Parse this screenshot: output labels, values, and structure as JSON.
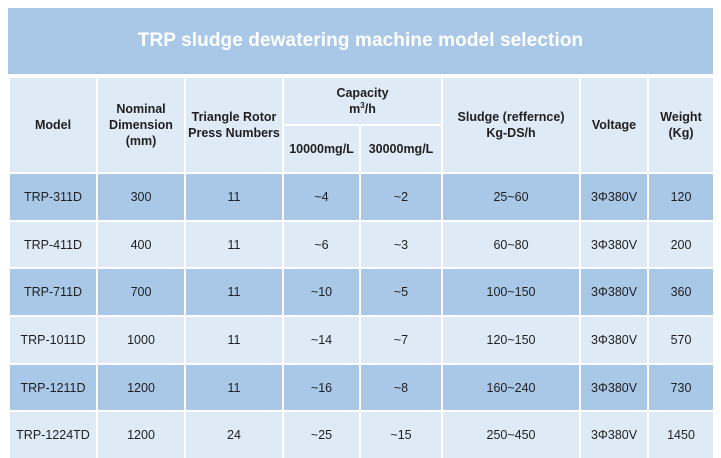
{
  "title": "TRP sludge dewatering machine model selection",
  "headers": {
    "model": "Model",
    "nominal_dimension_1": "Nominal",
    "nominal_dimension_2": "Dimension",
    "nominal_dimension_3": "(mm)",
    "rotor_1": "Triangle Rotor",
    "rotor_2": "Press Numbers",
    "capacity_1": "Capacity",
    "capacity_unit_base": "m",
    "capacity_unit_sup": "3",
    "capacity_unit_rest": "/h",
    "capacity_sub_1": "10000mg/L",
    "capacity_sub_2": "30000mg/L",
    "sludge_1": "Sludge (reffernce)",
    "sludge_2": "Kg-DS/h",
    "voltage": "Voltage",
    "weight_1": "Weight",
    "weight_2": "(Kg)"
  },
  "rows": [
    {
      "model": "TRP-311D",
      "dimension": "300",
      "rotors": "11",
      "cap_10000": "~4",
      "cap_30000": "~2",
      "sludge": "25~60",
      "voltage": "3Φ380V",
      "weight": "120"
    },
    {
      "model": "TRP-411D",
      "dimension": "400",
      "rotors": "11",
      "cap_10000": "~6",
      "cap_30000": "~3",
      "sludge": "60~80",
      "voltage": "3Φ380V",
      "weight": "200"
    },
    {
      "model": "TRP-711D",
      "dimension": "700",
      "rotors": "11",
      "cap_10000": "~10",
      "cap_30000": "~5",
      "sludge": "100~150",
      "voltage": "3Φ380V",
      "weight": "360"
    },
    {
      "model": "TRP-1011D",
      "dimension": "1000",
      "rotors": "11",
      "cap_10000": "~14",
      "cap_30000": "~7",
      "sludge": "120~150",
      "voltage": "3Φ380V",
      "weight": "570"
    },
    {
      "model": "TRP-1211D",
      "dimension": "1200",
      "rotors": "11",
      "cap_10000": "~16",
      "cap_30000": "~8",
      "sludge": "160~240",
      "voltage": "3Φ380V",
      "weight": "730"
    },
    {
      "model": "TRP-1224TD",
      "dimension": "1200",
      "rotors": "24",
      "cap_10000": "~25",
      "cap_30000": "~15",
      "sludge": "250~450",
      "voltage": "3Φ380V",
      "weight": "1450"
    }
  ],
  "colors": {
    "title_bg": "#a9c8e8",
    "header_bg": "#deeaf6",
    "row_dark": "#a9c8e8",
    "row_light": "#deeaf6"
  }
}
